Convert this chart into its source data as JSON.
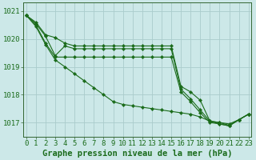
{
  "background_color": "#cce8e8",
  "grid_color": "#aacccc",
  "line_color": "#1a6b1a",
  "xlabel": "Graphe pression niveau de la mer (hPa)",
  "xlabel_fontsize": 7.5,
  "tick_fontsize": 6.5,
  "ylim": [
    1016.5,
    1021.3
  ],
  "yticks": [
    1017,
    1018,
    1019,
    1020,
    1021
  ],
  "xlim": [
    -0.3,
    23.3
  ],
  "xticks": [
    0,
    1,
    2,
    3,
    4,
    5,
    6,
    7,
    8,
    9,
    10,
    11,
    12,
    13,
    14,
    15,
    16,
    17,
    18,
    19,
    20,
    21,
    22,
    23
  ],
  "series": [
    [
      1020.85,
      1020.6,
      1020.15,
      1020.05,
      1019.85,
      1019.75,
      1019.75,
      1019.75,
      1019.75,
      1019.75,
      1019.75,
      1019.75,
      1019.75,
      1019.75,
      1019.75,
      1019.75,
      1018.3,
      1018.1,
      1017.8,
      1017.05,
      1017.0,
      1016.95,
      1017.1,
      1017.3
    ],
    [
      1020.85,
      1020.55,
      1020.1,
      1019.4,
      1019.75,
      1019.65,
      1019.65,
      1019.65,
      1019.65,
      1019.65,
      1019.65,
      1019.65,
      1019.65,
      1019.65,
      1019.65,
      1019.65,
      1018.2,
      1017.85,
      1017.45,
      1017.05,
      1017.0,
      1016.9,
      1017.1,
      1017.3
    ],
    [
      1020.85,
      1020.5,
      1019.85,
      1019.35,
      1019.35,
      1019.35,
      1019.35,
      1019.35,
      1019.35,
      1019.35,
      1019.35,
      1019.35,
      1019.35,
      1019.35,
      1019.35,
      1019.35,
      1018.1,
      1017.75,
      1017.35,
      1017.0,
      1016.95,
      1016.88,
      1017.1,
      1017.3
    ],
    [
      1020.85,
      1020.45,
      1019.8,
      1019.25,
      1019.0,
      1018.75,
      1018.5,
      1018.25,
      1018.0,
      1017.75,
      1017.65,
      1017.6,
      1017.55,
      1017.5,
      1017.45,
      1017.4,
      1017.35,
      1017.3,
      1017.2,
      1017.05,
      1016.95,
      1016.88,
      1017.1,
      1017.3
    ]
  ]
}
